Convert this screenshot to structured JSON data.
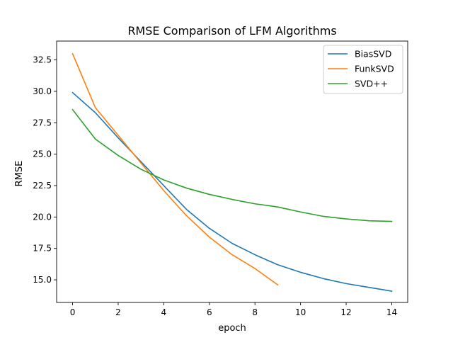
{
  "chart_data": {
    "type": "line",
    "title": "RMSE Comparison of LFM Algorithms",
    "xlabel": "epoch",
    "ylabel": "RMSE",
    "xlim": [
      -0.7,
      14.7
    ],
    "ylim": [
      13.2,
      34.0
    ],
    "xticks": [
      0,
      2,
      4,
      6,
      8,
      10,
      12,
      14
    ],
    "yticks": [
      15.0,
      17.5,
      20.0,
      22.5,
      25.0,
      27.5,
      30.0,
      32.5
    ],
    "ytick_labels": [
      "15.0",
      "17.5",
      "20.0",
      "22.5",
      "25.0",
      "27.5",
      "30.0",
      "32.5"
    ],
    "grid": false,
    "legend_position": "top-right",
    "series": [
      {
        "name": "BiasSVD",
        "color": "#1f77b4",
        "x": [
          0,
          1,
          2,
          3,
          4,
          5,
          6,
          7,
          8,
          9,
          10,
          11,
          12,
          13,
          14
        ],
        "y": [
          29.9,
          28.3,
          26.3,
          24.4,
          22.5,
          20.6,
          19.1,
          17.9,
          17.0,
          16.2,
          15.6,
          15.1,
          14.7,
          14.4,
          14.1
        ]
      },
      {
        "name": "FunkSVD",
        "color": "#ff7f0e",
        "x": [
          0,
          1,
          2,
          3,
          4,
          5,
          6,
          7,
          8,
          9
        ],
        "y": [
          33.0,
          28.7,
          26.5,
          24.3,
          22.1,
          20.1,
          18.4,
          17.0,
          15.9,
          14.6
        ]
      },
      {
        "name": "SVD++",
        "color": "#2ca02c",
        "x": [
          0,
          1,
          2,
          3,
          4,
          5,
          6,
          7,
          8,
          9,
          10,
          11,
          12,
          13,
          14
        ],
        "y": [
          28.55,
          26.2,
          24.9,
          23.8,
          22.95,
          22.3,
          21.8,
          21.4,
          21.05,
          20.8,
          20.4,
          20.05,
          19.85,
          19.7,
          19.65
        ]
      }
    ]
  }
}
